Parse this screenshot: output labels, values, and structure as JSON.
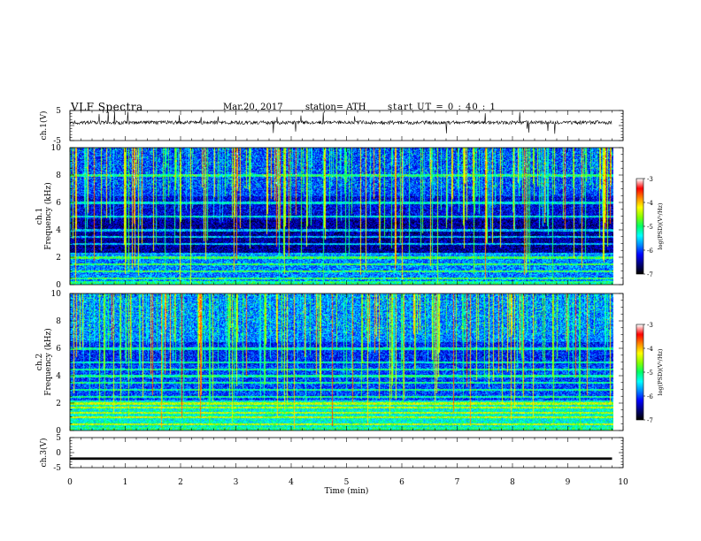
{
  "header": {
    "title": "VLF  Spectra",
    "date": "Mar.20, 2017",
    "station": "station= ATH",
    "start": "start  UT  =   0  : 40 : 1"
  },
  "chart_data": [
    {
      "type": "line",
      "panel": "ch1-waveform",
      "ylabel": "ch.1(V)",
      "ylim": [
        -5,
        5
      ],
      "yticks": [
        "5",
        "-5"
      ],
      "xlim": [
        0,
        10
      ],
      "description_visible": "noisy waveform near +1 V"
    },
    {
      "type": "heatmap",
      "panel": "ch1-spectrogram",
      "ylabel": "ch.1\nFrequency (kHz)",
      "ylim": [
        0,
        10
      ],
      "yticks": [
        "0",
        "2",
        "4",
        "6",
        "8",
        "10"
      ],
      "xlim": [
        0,
        9.8
      ],
      "colorbar": {
        "label": "log(PSD)(V²/Hz)",
        "range": [
          -7,
          -3
        ],
        "ticks": [
          "-3",
          "-4",
          "-5",
          "-6",
          "-7"
        ]
      },
      "background_bands_kHz": [
        0.5,
        1.0,
        1.5,
        2.0,
        2.3,
        3.0,
        3.5,
        4.0,
        5.0,
        6.0,
        8.0
      ],
      "colormap": [
        "#000000",
        "#00007a",
        "#0000ff",
        "#0088ff",
        "#00ffff",
        "#00ff66",
        "#88ff00",
        "#ffff00",
        "#ff8800",
        "#ff0000",
        "#ffffff"
      ]
    },
    {
      "type": "heatmap",
      "panel": "ch2-spectrogram",
      "ylabel": "ch.2\nFrequency (kHz)",
      "ylim": [
        0,
        10
      ],
      "yticks": [
        "0",
        "2",
        "4",
        "6",
        "8",
        "10"
      ],
      "xlim": [
        0,
        9.8
      ],
      "colorbar": {
        "label": "log(PSD)(V²/Hz)",
        "range": [
          -7,
          -3
        ],
        "ticks": [
          "-3",
          "-4",
          "-5",
          "-6",
          "-7"
        ]
      },
      "background_bands_kHz": [
        0.5,
        1.0,
        1.3,
        1.7,
        2.0,
        2.5,
        3.0,
        3.5,
        4.0,
        4.5,
        5.0,
        6.0
      ],
      "colormap": [
        "#000000",
        "#00007a",
        "#0000ff",
        "#0088ff",
        "#00ffff",
        "#00ff66",
        "#88ff00",
        "#ffff00",
        "#ff8800",
        "#ff0000",
        "#ffffff"
      ]
    },
    {
      "type": "line",
      "panel": "ch3-waveform",
      "ylabel": "ch.3(V)",
      "ylim": [
        -5,
        5
      ],
      "yticks": [
        "5",
        "0",
        "-5"
      ],
      "xlim": [
        0,
        10
      ],
      "xlabel": "Time  (min)",
      "xticks": [
        "0",
        "1",
        "2",
        "3",
        "4",
        "5",
        "6",
        "7",
        "8",
        "9",
        "10"
      ],
      "description_visible": "flat dense trace near -2 V"
    }
  ]
}
